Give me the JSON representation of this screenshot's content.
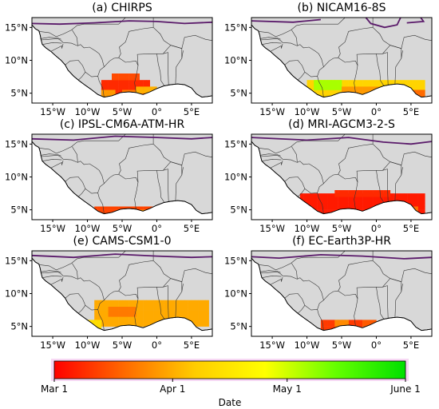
{
  "figure": {
    "panels": [
      {
        "id": "a",
        "title": "(a) CHIRPS"
      },
      {
        "id": "b",
        "title": "(b) NICAM16-8S"
      },
      {
        "id": "c",
        "title": "(c) IPSL-CM6A-ATM-HR"
      },
      {
        "id": "d",
        "title": "(d) MRI-AGCM3-2-S"
      },
      {
        "id": "e",
        "title": "(e) CAMS-CSM1-0"
      },
      {
        "id": "f",
        "title": "(f) EC-Earth3P-HR"
      }
    ],
    "lat_ticks": [
      "15°N",
      "10°N",
      "5°N"
    ],
    "lon_ticks": [
      "15°W",
      "10°W",
      "5°W",
      "0°",
      "5°E"
    ],
    "colors": {
      "land": "#d8d8d8",
      "ocean": "#ffffff",
      "contour": "#5a1a6a",
      "border": "#333333"
    }
  },
  "colorbar": {
    "label": "Date",
    "ticks": [
      "Mar 1",
      "Apr 1",
      "May 1",
      "June 1"
    ],
    "stops": [
      "#ff0000",
      "#ff6a00",
      "#ffcc00",
      "#ffff00",
      "#66ff00",
      "#00e000"
    ]
  }
}
